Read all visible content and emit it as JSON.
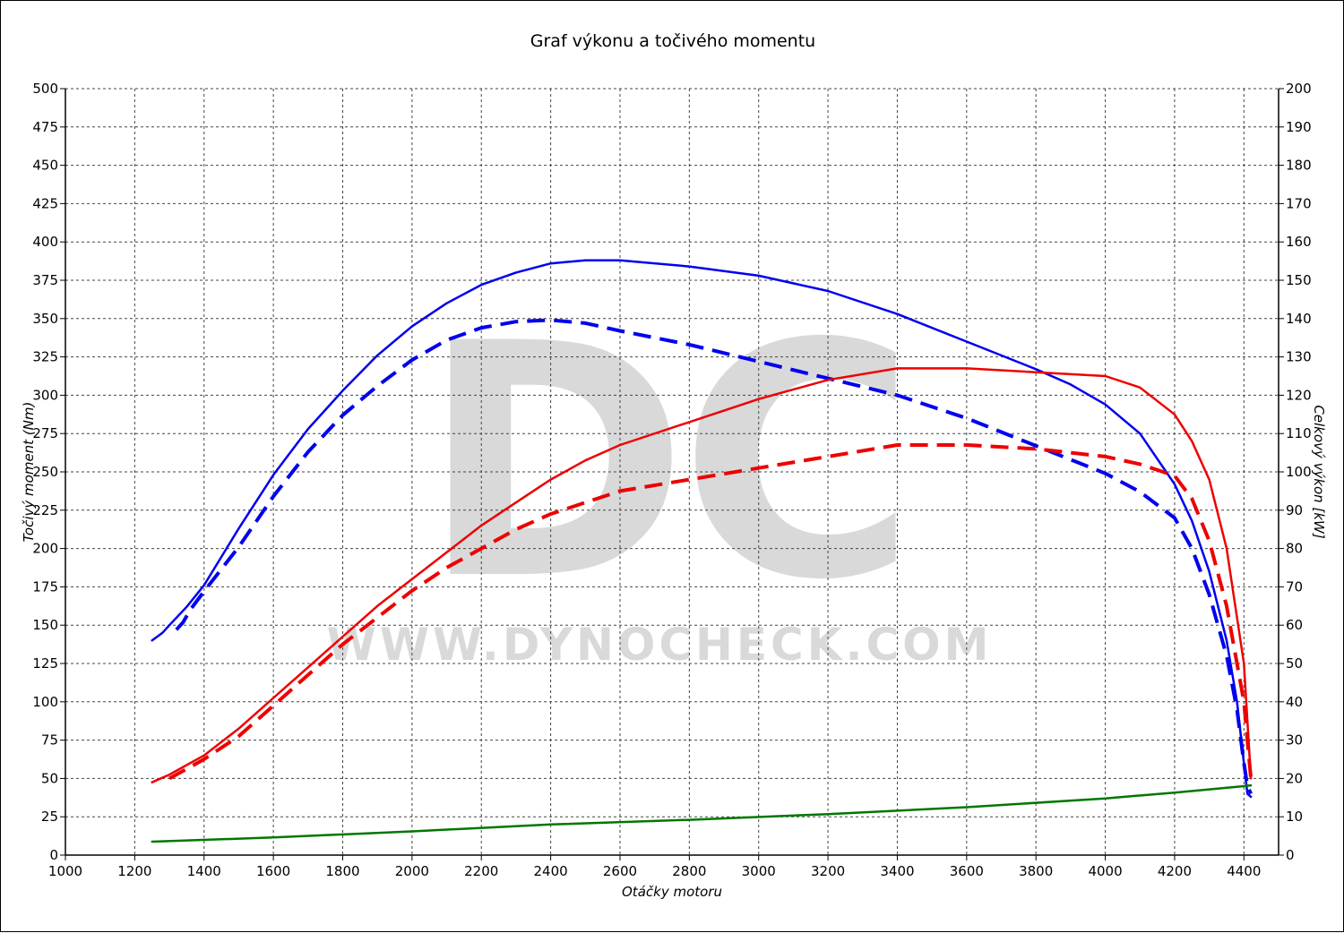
{
  "chart_data": {
    "type": "line",
    "title": "Graf výkonu a točivého momentu",
    "xlabel": "Otáčky motoru",
    "ylabel_left": "Točivý moment (Nm)",
    "ylabel_right": "Celkový výkon [kW]",
    "xlim": [
      1000,
      4500
    ],
    "ylim_left": [
      0,
      500
    ],
    "ylim_right": [
      0,
      200
    ],
    "x_ticks": [
      "1000",
      "1200",
      "1400",
      "1600",
      "1800",
      "2000",
      "2200",
      "2400",
      "2600",
      "2800",
      "3000",
      "3200",
      "3400",
      "3600",
      "3800",
      "4000",
      "4200",
      "4400"
    ],
    "y_left_ticks": [
      "0",
      "25",
      "50",
      "75",
      "100",
      "125",
      "150",
      "175",
      "200",
      "225",
      "250",
      "275",
      "300",
      "325",
      "350",
      "375",
      "400",
      "425",
      "450",
      "475",
      "500"
    ],
    "y_right_ticks": [
      "0",
      "10",
      "20",
      "30",
      "40",
      "50",
      "60",
      "70",
      "80",
      "90",
      "100",
      "110",
      "120",
      "130",
      "140",
      "150",
      "160",
      "170",
      "180",
      "190",
      "200"
    ],
    "grid": true,
    "watermark": {
      "logo": "DC",
      "text": "WWW.DYNOCHECK.COM"
    },
    "series": [
      {
        "color": "#0000ee",
        "style": "solid",
        "axis": "left",
        "x": [
          1250,
          1280,
          1300,
          1350,
          1400,
          1500,
          1600,
          1700,
          1800,
          1900,
          2000,
          2100,
          2200,
          2300,
          2400,
          2500,
          2600,
          2800,
          3000,
          3200,
          3400,
          3600,
          3800,
          3900,
          4000,
          4100,
          4200,
          4250,
          4300,
          4350,
          4380,
          4400,
          4410,
          4420
        ],
        "y": [
          140,
          145,
          150,
          162,
          176,
          213,
          248,
          278,
          303,
          326,
          345,
          360,
          372,
          380,
          386,
          388,
          388,
          384,
          378,
          368,
          353,
          335,
          317,
          307,
          294,
          275,
          242,
          218,
          185,
          140,
          100,
          60,
          40,
          38
        ]
      },
      {
        "color": "#0000ee",
        "style": "dashed",
        "axis": "left",
        "x": [
          1320,
          1340,
          1360,
          1400,
          1500,
          1600,
          1700,
          1800,
          1900,
          2000,
          2100,
          2200,
          2300,
          2400,
          2500,
          2600,
          2800,
          3000,
          3200,
          3400,
          3600,
          3800,
          4000,
          4100,
          4200,
          4250,
          4300,
          4350,
          4380,
          4400,
          4410,
          4420
        ],
        "y": [
          147,
          152,
          160,
          172,
          201,
          234,
          263,
          287,
          306,
          323,
          336,
          344,
          348,
          349,
          347,
          342,
          333,
          322,
          311,
          300,
          285,
          267,
          249,
          237,
          220,
          200,
          170,
          130,
          95,
          60,
          45,
          40
        ]
      },
      {
        "color": "#ee0000",
        "style": "solid",
        "axis": "right",
        "x": [
          1250,
          1300,
          1400,
          1500,
          1600,
          1700,
          1800,
          1900,
          2000,
          2100,
          2200,
          2300,
          2400,
          2500,
          2600,
          2800,
          3000,
          3200,
          3400,
          3500,
          3600,
          3800,
          4000,
          4100,
          4200,
          4250,
          4300,
          4350,
          4400,
          4420
        ],
        "y": [
          19,
          21,
          26,
          33,
          41,
          49,
          57,
          65,
          72,
          79,
          86,
          92,
          98,
          103,
          107,
          113,
          119,
          124,
          127,
          127,
          127,
          126,
          125,
          122,
          115,
          108,
          98,
          80,
          50,
          20
        ]
      },
      {
        "color": "#ee0000",
        "style": "dashed",
        "axis": "right",
        "x": [
          1300,
          1400,
          1500,
          1600,
          1700,
          1800,
          1900,
          2000,
          2100,
          2200,
          2300,
          2400,
          2500,
          2600,
          2800,
          3000,
          3200,
          3400,
          3600,
          3800,
          4000,
          4100,
          4200,
          4250,
          4300,
          4350,
          4400,
          4420
        ],
        "y": [
          20,
          25,
          31,
          39,
          47,
          55,
          62,
          69,
          75,
          80,
          85,
          89,
          92,
          95,
          98,
          101,
          104,
          107,
          107,
          106,
          104,
          102,
          99,
          93,
          82,
          65,
          40,
          20
        ]
      },
      {
        "color": "#007700",
        "style": "solid",
        "axis": "right",
        "x": [
          1250,
          1600,
          2000,
          2400,
          2800,
          3200,
          3600,
          4000,
          4200,
          4400,
          4420
        ],
        "y": [
          3.5,
          4.6,
          6.2,
          8.0,
          9.2,
          10.7,
          12.5,
          14.8,
          16.3,
          18.0,
          18.2
        ]
      }
    ]
  }
}
